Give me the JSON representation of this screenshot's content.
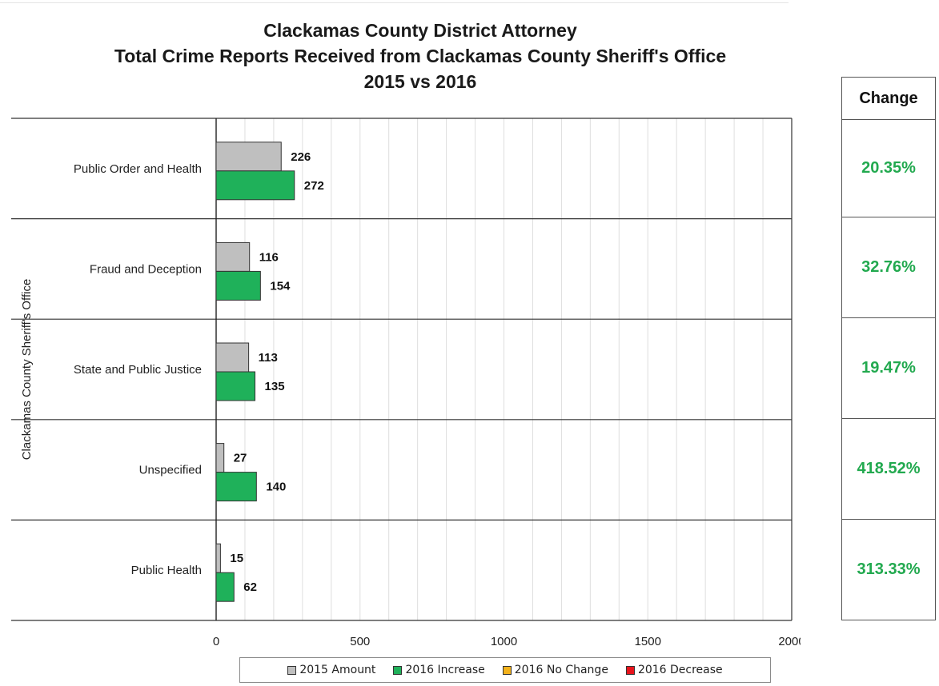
{
  "chart_data": {
    "type": "bar",
    "orientation": "horizontal",
    "title": [
      "Clackamas County District Attorney",
      "Total Crime Reports Received from Clackamas County Sheriff's Office",
      "2015 vs 2016"
    ],
    "ylabel": "Clackamas County Sheriff's Office",
    "xlabel": "",
    "categories": [
      "Public Order and Health",
      "Fraud and Deception",
      "State and Public Justice",
      "Unspecified",
      "Public Health"
    ],
    "series": [
      {
        "name": "2015 Amount",
        "values": [
          226,
          116,
          113,
          27,
          15
        ],
        "color": "#bfbfbf"
      },
      {
        "name": "2016 Increase",
        "values": [
          272,
          154,
          135,
          140,
          62
        ],
        "color": "#1fb15a"
      }
    ],
    "xlim": [
      0,
      2000
    ],
    "xticks": [
      0,
      500,
      1000,
      1500,
      2000
    ],
    "minor_grid_step": 100,
    "grid": true,
    "legend_position": "bottom",
    "legend": [
      {
        "label": "2015 Amount",
        "color": "#bfbfbf"
      },
      {
        "label": "2016 Increase",
        "color": "#1fb15a"
      },
      {
        "label": "2016 No Change",
        "color": "#f3b21b"
      },
      {
        "label": "2016 Decrease",
        "color": "#e8141c"
      }
    ]
  },
  "change_table": {
    "header": "Change",
    "values": [
      "20.35%",
      "32.76%",
      "19.47%",
      "418.52%",
      "313.33%"
    ],
    "color": "#22a94f"
  }
}
